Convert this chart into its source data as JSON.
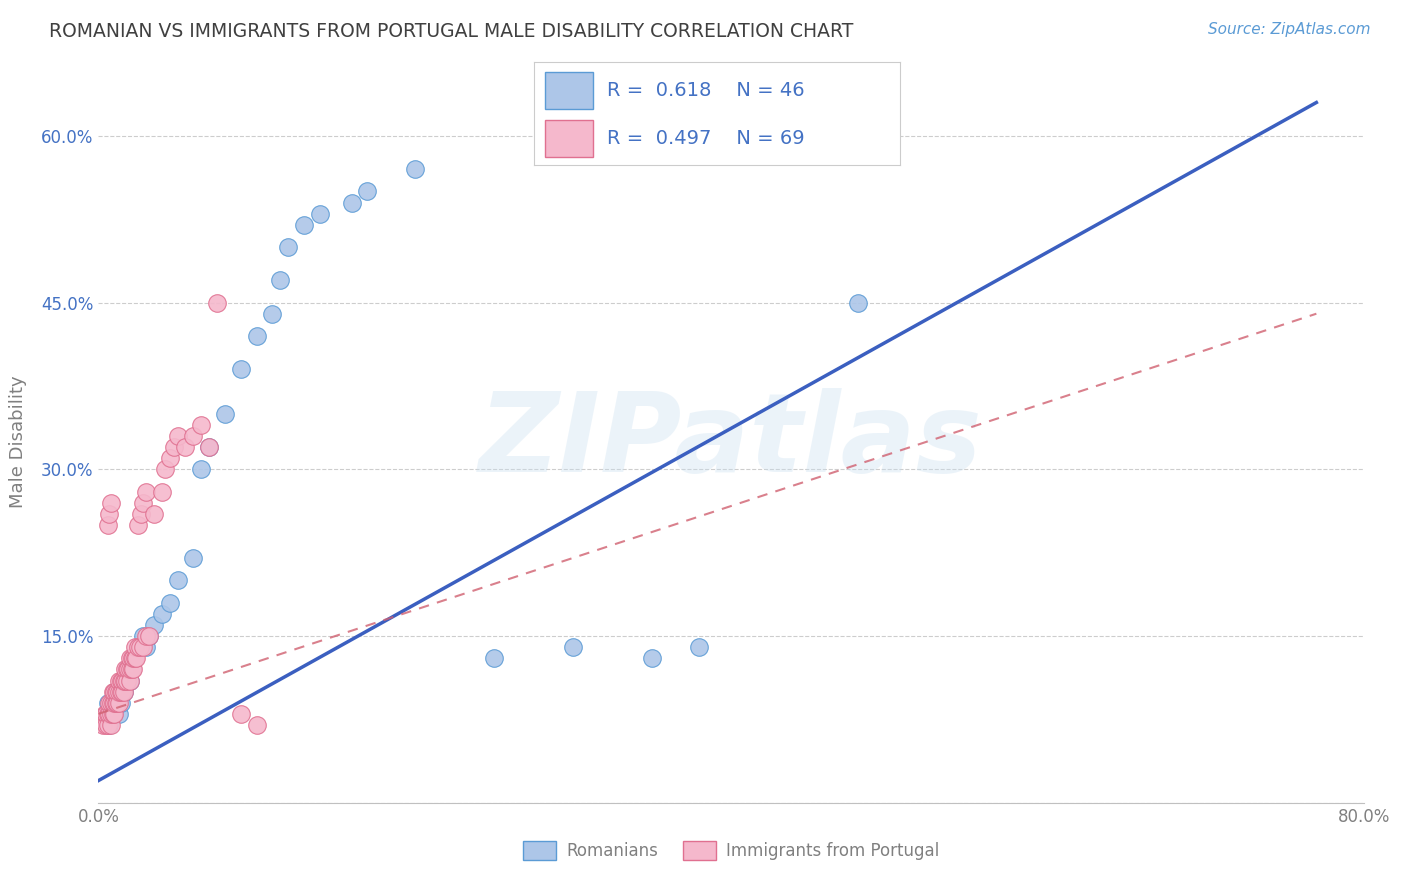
{
  "title": "ROMANIAN VS IMMIGRANTS FROM PORTUGAL MALE DISABILITY CORRELATION CHART",
  "source": "Source: ZipAtlas.com",
  "ylabel": "Male Disability",
  "watermark": "ZIPatlas",
  "xlim": [
    0.0,
    0.8
  ],
  "ylim": [
    0.0,
    0.65
  ],
  "xticks": [
    0.0,
    0.2,
    0.4,
    0.6,
    0.8
  ],
  "xtick_labels": [
    "0.0%",
    "",
    "",
    "",
    "80.0%"
  ],
  "ytick_labels": [
    "",
    "15.0%",
    "30.0%",
    "45.0%",
    "60.0%"
  ],
  "yticks": [
    0.0,
    0.15,
    0.3,
    0.45,
    0.6
  ],
  "color_romanian": "#adc6e8",
  "color_portugal": "#f5b8cc",
  "color_romanian_edge": "#5b9bd5",
  "color_portugal_edge": "#e07090",
  "regression_color_romanian": "#3b5fc0",
  "regression_color_portugal": "#d06070",
  "grid_color": "#c8c8c8",
  "background_color": "#ffffff",
  "title_color": "#404040",
  "axis_label_color": "#808080",
  "tick_color_y": "#4472c4",
  "romanians_scatter": [
    [
      0.005,
      0.08
    ],
    [
      0.006,
      0.09
    ],
    [
      0.007,
      0.07
    ],
    [
      0.008,
      0.08
    ],
    [
      0.009,
      0.09
    ],
    [
      0.01,
      0.08
    ],
    [
      0.01,
      0.1
    ],
    [
      0.011,
      0.09
    ],
    [
      0.012,
      0.1
    ],
    [
      0.013,
      0.08
    ],
    [
      0.014,
      0.09
    ],
    [
      0.015,
      0.1
    ],
    [
      0.015,
      0.11
    ],
    [
      0.016,
      0.1
    ],
    [
      0.017,
      0.11
    ],
    [
      0.018,
      0.12
    ],
    [
      0.02,
      0.11
    ],
    [
      0.021,
      0.12
    ],
    [
      0.022,
      0.13
    ],
    [
      0.025,
      0.14
    ],
    [
      0.028,
      0.15
    ],
    [
      0.03,
      0.14
    ],
    [
      0.032,
      0.15
    ],
    [
      0.035,
      0.16
    ],
    [
      0.04,
      0.17
    ],
    [
      0.045,
      0.18
    ],
    [
      0.05,
      0.2
    ],
    [
      0.06,
      0.22
    ],
    [
      0.065,
      0.3
    ],
    [
      0.07,
      0.32
    ],
    [
      0.08,
      0.35
    ],
    [
      0.09,
      0.39
    ],
    [
      0.1,
      0.42
    ],
    [
      0.11,
      0.44
    ],
    [
      0.115,
      0.47
    ],
    [
      0.12,
      0.5
    ],
    [
      0.13,
      0.52
    ],
    [
      0.14,
      0.53
    ],
    [
      0.16,
      0.54
    ],
    [
      0.17,
      0.55
    ],
    [
      0.2,
      0.57
    ],
    [
      0.25,
      0.13
    ],
    [
      0.3,
      0.14
    ],
    [
      0.35,
      0.13
    ],
    [
      0.38,
      0.14
    ],
    [
      0.48,
      0.45
    ]
  ],
  "portugal_scatter": [
    [
      0.003,
      0.07
    ],
    [
      0.004,
      0.08
    ],
    [
      0.005,
      0.07
    ],
    [
      0.005,
      0.08
    ],
    [
      0.006,
      0.07
    ],
    [
      0.006,
      0.08
    ],
    [
      0.007,
      0.08
    ],
    [
      0.007,
      0.09
    ],
    [
      0.008,
      0.07
    ],
    [
      0.008,
      0.08
    ],
    [
      0.008,
      0.09
    ],
    [
      0.009,
      0.08
    ],
    [
      0.009,
      0.09
    ],
    [
      0.009,
      0.1
    ],
    [
      0.01,
      0.08
    ],
    [
      0.01,
      0.09
    ],
    [
      0.01,
      0.1
    ],
    [
      0.011,
      0.09
    ],
    [
      0.011,
      0.1
    ],
    [
      0.012,
      0.09
    ],
    [
      0.012,
      0.1
    ],
    [
      0.013,
      0.09
    ],
    [
      0.013,
      0.1
    ],
    [
      0.013,
      0.11
    ],
    [
      0.014,
      0.1
    ],
    [
      0.014,
      0.11
    ],
    [
      0.015,
      0.1
    ],
    [
      0.015,
      0.11
    ],
    [
      0.016,
      0.1
    ],
    [
      0.016,
      0.11
    ],
    [
      0.017,
      0.11
    ],
    [
      0.017,
      0.12
    ],
    [
      0.018,
      0.11
    ],
    [
      0.018,
      0.12
    ],
    [
      0.019,
      0.12
    ],
    [
      0.02,
      0.11
    ],
    [
      0.02,
      0.12
    ],
    [
      0.02,
      0.13
    ],
    [
      0.021,
      0.12
    ],
    [
      0.021,
      0.13
    ],
    [
      0.022,
      0.12
    ],
    [
      0.022,
      0.13
    ],
    [
      0.023,
      0.13
    ],
    [
      0.023,
      0.14
    ],
    [
      0.024,
      0.13
    ],
    [
      0.025,
      0.14
    ],
    [
      0.025,
      0.25
    ],
    [
      0.026,
      0.14
    ],
    [
      0.027,
      0.26
    ],
    [
      0.028,
      0.14
    ],
    [
      0.028,
      0.27
    ],
    [
      0.03,
      0.28
    ],
    [
      0.03,
      0.15
    ],
    [
      0.032,
      0.15
    ],
    [
      0.035,
      0.26
    ],
    [
      0.04,
      0.28
    ],
    [
      0.042,
      0.3
    ],
    [
      0.045,
      0.31
    ],
    [
      0.048,
      0.32
    ],
    [
      0.05,
      0.33
    ],
    [
      0.055,
      0.32
    ],
    [
      0.06,
      0.33
    ],
    [
      0.065,
      0.34
    ],
    [
      0.07,
      0.32
    ],
    [
      0.006,
      0.25
    ],
    [
      0.007,
      0.26
    ],
    [
      0.008,
      0.27
    ],
    [
      0.075,
      0.45
    ],
    [
      0.09,
      0.08
    ],
    [
      0.1,
      0.07
    ]
  ]
}
